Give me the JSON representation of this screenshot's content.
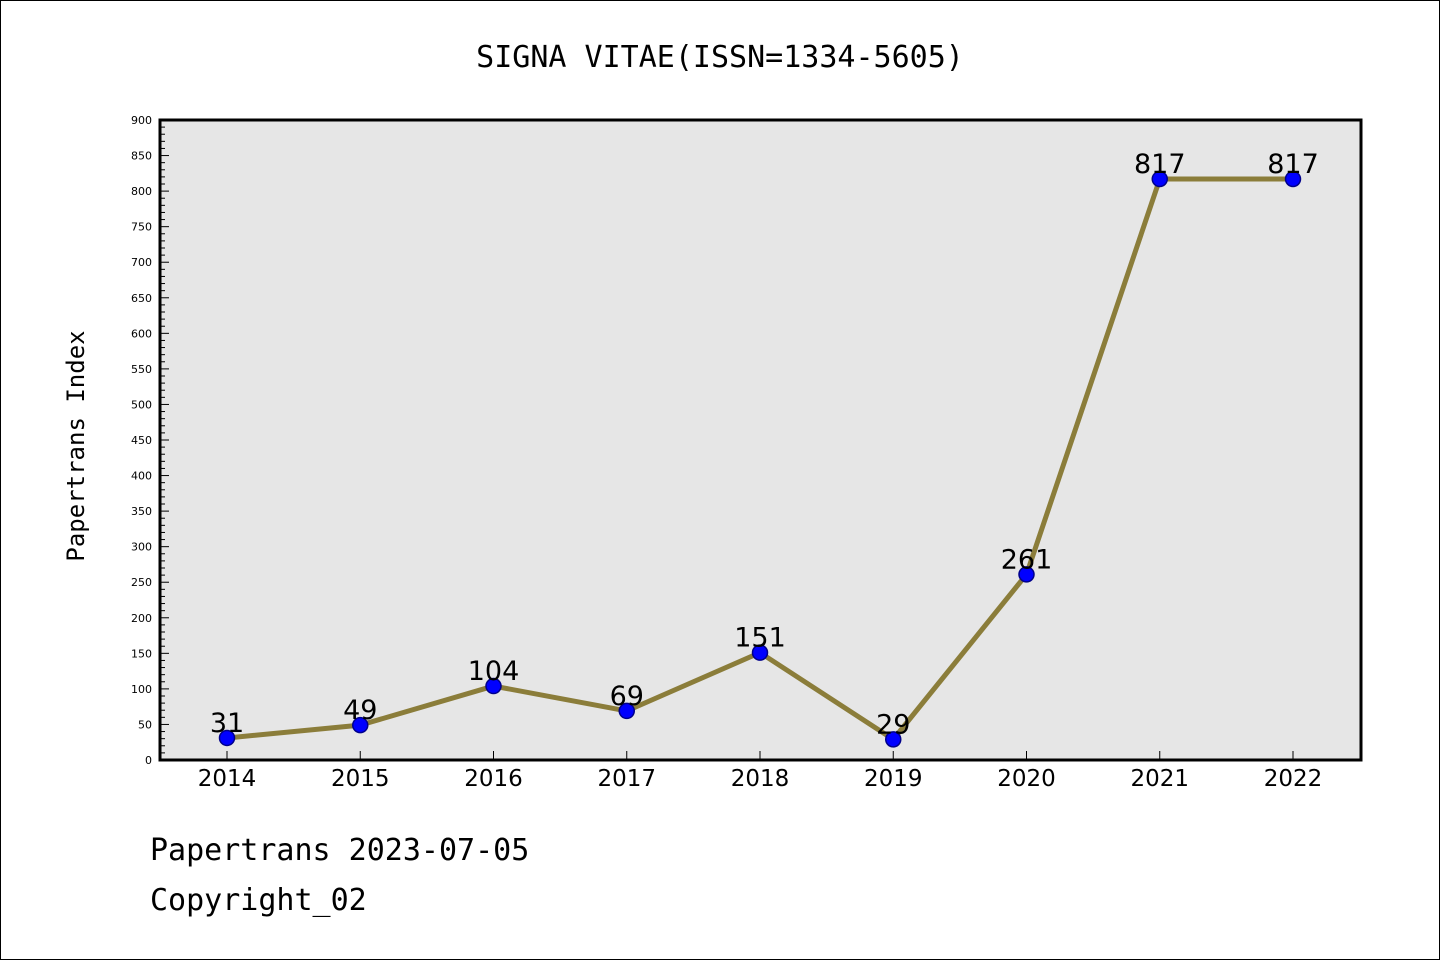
{
  "chart_data": {
    "type": "line",
    "title": "SIGNA VITAE(ISSN=1334-5605)",
    "xlabel": "",
    "ylabel": "Papertrans Index",
    "categories": [
      "2014",
      "2015",
      "2016",
      "2017",
      "2018",
      "2019",
      "2020",
      "2021",
      "2022"
    ],
    "series": [
      {
        "values": [
          31,
          49,
          104,
          69,
          151,
          29,
          261,
          817,
          817
        ]
      }
    ],
    "data_labels": [
      "31",
      "49",
      "104",
      "69",
      "151",
      "29",
      "261",
      "817",
      "817"
    ],
    "ylim": [
      0,
      900
    ],
    "y_ticks": [
      "0",
      "50",
      "100",
      "150",
      "200",
      "250",
      "300",
      "350",
      "400",
      "450",
      "500",
      "550",
      "600",
      "650",
      "700",
      "750",
      "800",
      "850",
      "900"
    ],
    "grid": false,
    "legend": "none",
    "colors": {
      "line": "#8B7D3A",
      "marker_fill": "#0000FF",
      "marker_edge": "#00008B",
      "plot_background": "#E6E6E6"
    }
  },
  "footer": {
    "line1": "Papertrans 2023-07-05",
    "line2": "Copyright_02"
  }
}
